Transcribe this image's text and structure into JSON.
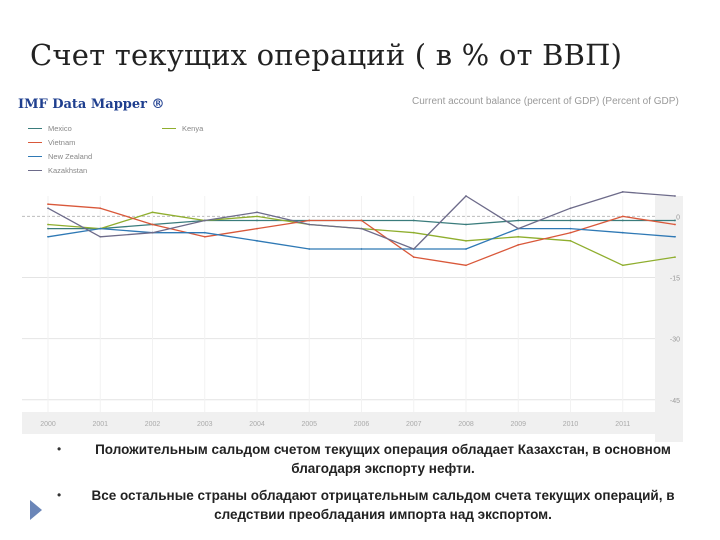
{
  "slide": {
    "title": "Счет текущих операций ( в % от ВВП)",
    "bullets": [
      "Положительным сальдом счетом текущих операция обладает Казахстан, в основном благодаря экспорту нефти.",
      "Все остальные страны обладают отрицательным сальдом счета текущих операций, в следствии преобладания импорта над экспортом."
    ]
  },
  "imf": {
    "logo_text": "IMF Data Mapper ®"
  },
  "chart_data": {
    "type": "line",
    "title": "Current account balance (percent of GDP) (Percent of GDP)",
    "xlabel": "",
    "ylabel": "",
    "x": [
      2000,
      2001,
      2002,
      2003,
      2004,
      2005,
      2006,
      2007,
      2008,
      2009,
      2010,
      2011,
      2012
    ],
    "x_tick_labels": [
      "2000",
      "2001",
      "2002",
      "2003",
      "2004",
      "2005",
      "2006",
      "2007",
      "2008",
      "2009",
      "2010",
      "2011"
    ],
    "y_tick_labels": [
      "0",
      "-15",
      "-30",
      "-45"
    ],
    "ylim": [
      -48,
      5
    ],
    "grid": true,
    "legend_position": "top-left",
    "series": [
      {
        "name": "Mexico",
        "color": "#3a7c7c",
        "values": [
          -3,
          -3,
          -2,
          -1,
          -1,
          -1,
          -1,
          -1,
          -2,
          -1,
          -1,
          -1,
          -1
        ]
      },
      {
        "name": "Kenya",
        "color": "#8fae2e",
        "values": [
          -2,
          -3,
          1,
          -1,
          0,
          -2,
          -3,
          -4,
          -6,
          -5,
          -6,
          -12,
          -10
        ]
      },
      {
        "name": "Vietnam",
        "color": "#d9583a",
        "values": [
          3,
          2,
          -2,
          -5,
          -3,
          -1,
          -1,
          -10,
          -12,
          -7,
          -4,
          0,
          -2
        ]
      },
      {
        "name": "New Zealand",
        "color": "#2f79b5",
        "values": [
          -5,
          -3,
          -4,
          -4,
          -6,
          -8,
          -8,
          -8,
          -8,
          -3,
          -3,
          -4,
          -5
        ]
      },
      {
        "name": "Kazakhstan",
        "color": "#6d6b8a",
        "values": [
          2,
          -5,
          -4,
          -1,
          1,
          -2,
          -3,
          -8,
          5,
          -3,
          2,
          6,
          5
        ]
      }
    ]
  }
}
